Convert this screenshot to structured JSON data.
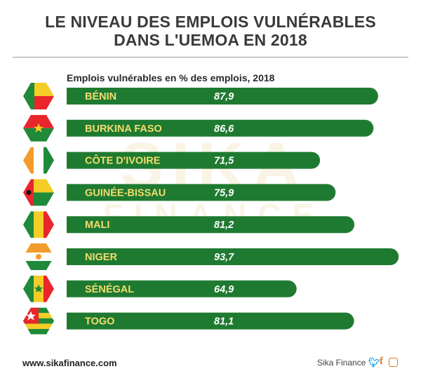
{
  "header": {
    "title_line1": "LE NIVEAU DES EMPLOIS VULNÉRABLES",
    "title_line2": "DANS L'UEMOA EN 2018"
  },
  "watermark": {
    "line1": "SIKA",
    "line2": "FINANCE"
  },
  "chart_data": {
    "type": "bar",
    "orientation": "horizontal",
    "title": "Emplois vulnérables en % des emplois, 2018",
    "categories": [
      "BÉNIN",
      "BURKINA FASO",
      "CÔTE D'IVOIRE",
      "GUINÉE-BISSAU",
      "MALI",
      "NIGER",
      "SÉNÉGAL",
      "TOGO"
    ],
    "values": [
      87.9,
      86.6,
      71.5,
      75.9,
      81.2,
      93.7,
      64.9,
      81.1
    ],
    "value_labels": [
      "87,9",
      "86,6",
      "71,5",
      "75,9",
      "81,2",
      "93,7",
      "64,9",
      "81,1"
    ],
    "bar_color": "#1f7a31",
    "label_color": "#f2dd6e",
    "value_color": "#ffffff",
    "xlim": [
      0,
      100
    ],
    "grid": false,
    "flag_icons": [
      "benin-flag-icon",
      "burkina-faso-flag-icon",
      "cote-divoire-flag-icon",
      "guinea-bissau-flag-icon",
      "mali-flag-icon",
      "niger-flag-icon",
      "senegal-flag-icon",
      "togo-flag-icon"
    ]
  },
  "footer": {
    "website": "www.sikafinance.com",
    "brand": "Sika Finance",
    "twitter_icon": "twitter-icon",
    "facebook_icon": "facebook-icon",
    "instagram_icon": "instagram-icon"
  }
}
